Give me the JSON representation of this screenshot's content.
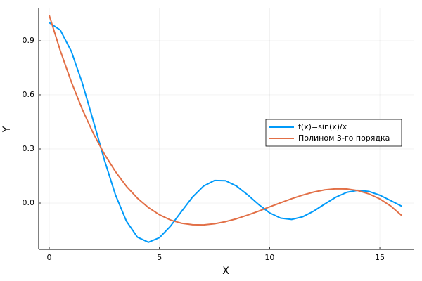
{
  "chart_data": {
    "type": "line",
    "x_label": "X",
    "y_label": "Y",
    "x": [
      0,
      0.5,
      1,
      1.5,
      2,
      2.5,
      3,
      3.5,
      4,
      4.5,
      5,
      5.5,
      6,
      6.5,
      7,
      7.5,
      8,
      8.5,
      9,
      9.5,
      10,
      10.5,
      11,
      11.5,
      12,
      12.5,
      13,
      13.5,
      14,
      14.5,
      15,
      15.5,
      16
    ],
    "series": [
      {
        "name": "f(x)=sin(x)/x",
        "color": "#009af9",
        "values": [
          1,
          0.9589,
          0.8415,
          0.665,
          0.4546,
          0.2394,
          0.047,
          -0.1002,
          -0.1892,
          -0.2172,
          -0.1918,
          -0.1283,
          -0.0466,
          0.0331,
          0.0939,
          0.1251,
          0.1237,
          0.0939,
          0.0458,
          -0.0079,
          -0.0544,
          -0.0838,
          -0.0909,
          -0.0761,
          -0.0447,
          -0.0053,
          0.0323,
          0.0595,
          0.0708,
          0.0645,
          0.0434,
          0.0133,
          -0.018
        ]
      },
      {
        "name": "Полином 3-го порядка",
        "color": "#e26f46",
        "values": [
          1.04,
          0.845,
          0.672,
          0.519,
          0.386,
          0.272,
          0.175,
          0.093,
          0.027,
          -0.025,
          -0.065,
          -0.094,
          -0.112,
          -0.12,
          -0.121,
          -0.115,
          -0.103,
          -0.087,
          -0.067,
          -0.045,
          -0.021,
          0.002,
          0.024,
          0.044,
          0.061,
          0.073,
          0.079,
          0.078,
          0.069,
          0.051,
          0.023,
          -0.017,
          -0.07
        ]
      }
    ],
    "xlim": [
      -0.48,
      16.53
    ],
    "ylim": [
      -0.257,
      1.079
    ],
    "xticks": [
      0,
      5,
      10,
      15
    ],
    "yticks": [
      {
        "value": 0,
        "label": "0.0"
      },
      0.3,
      0.6,
      0.9
    ],
    "grid": true,
    "legend_position": "right"
  }
}
